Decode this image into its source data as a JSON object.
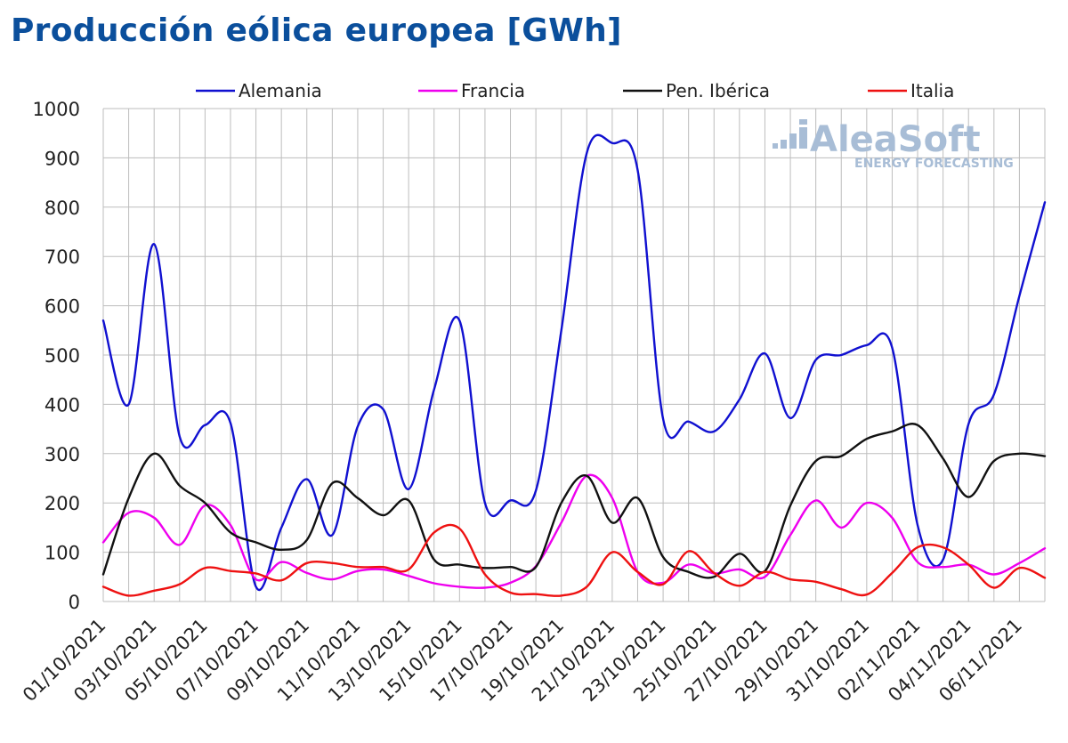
{
  "title": "Producción eólica europea [GWh]",
  "logo": {
    "name": "AleaSoft",
    "tagline": "ENERGY FORECASTING",
    "color": "#a8bdd6"
  },
  "chart_data": {
    "type": "line",
    "title": "Producción eólica europea [GWh]",
    "ylim": [
      0,
      1000
    ],
    "yticks": [
      "0",
      "100",
      "200",
      "300",
      "400",
      "500",
      "600",
      "700",
      "800",
      "900",
      "1000"
    ],
    "grid": true,
    "legend_position": "top",
    "x_tick_labels": [
      "01/10/2021",
      "03/10/2021",
      "05/10/2021",
      "07/10/2021",
      "09/10/2021",
      "11/10/2021",
      "13/10/2021",
      "15/10/2021",
      "17/10/2021",
      "19/10/2021",
      "21/10/2021",
      "23/10/2021",
      "25/10/2021",
      "27/10/2021",
      "29/10/2021",
      "31/10/2021",
      "02/11/2021",
      "04/11/2021",
      "06/11/2021"
    ],
    "x": [
      "01/10/2021",
      "02/10/2021",
      "03/10/2021",
      "04/10/2021",
      "05/10/2021",
      "06/10/2021",
      "07/10/2021",
      "08/10/2021",
      "09/10/2021",
      "10/10/2021",
      "11/10/2021",
      "12/10/2021",
      "13/10/2021",
      "14/10/2021",
      "15/10/2021",
      "16/10/2021",
      "17/10/2021",
      "18/10/2021",
      "19/10/2021",
      "20/10/2021",
      "21/10/2021",
      "22/10/2021",
      "23/10/2021",
      "24/10/2021",
      "25/10/2021",
      "26/10/2021",
      "27/10/2021",
      "28/10/2021",
      "29/10/2021",
      "30/10/2021",
      "31/10/2021",
      "01/11/2021",
      "02/11/2021",
      "03/11/2021",
      "04/11/2021",
      "05/11/2021",
      "06/11/2021",
      "07/11/2021"
    ],
    "series": [
      {
        "name": "Alemania",
        "color": "#1010d0",
        "values": [
          570,
          400,
          725,
          335,
          358,
          362,
          30,
          150,
          248,
          135,
          355,
          390,
          228,
          430,
          570,
          200,
          205,
          225,
          550,
          910,
          930,
          875,
          370,
          365,
          345,
          410,
          503,
          372,
          490,
          500,
          520,
          515,
          155,
          85,
          360,
          420,
          620,
          810
        ]
      },
      {
        "name": "Francia",
        "color": "#ee00ee",
        "values": [
          120,
          180,
          170,
          115,
          195,
          155,
          45,
          80,
          58,
          45,
          62,
          65,
          52,
          37,
          30,
          28,
          38,
          72,
          160,
          255,
          210,
          60,
          38,
          75,
          57,
          65,
          50,
          135,
          205,
          150,
          200,
          170,
          80,
          70,
          75,
          55,
          78,
          108
        ]
      },
      {
        "name": "Pen. Ibérica",
        "color": "#111111",
        "values": [
          55,
          210,
          300,
          235,
          200,
          140,
          120,
          105,
          125,
          240,
          210,
          175,
          205,
          85,
          75,
          68,
          70,
          70,
          200,
          255,
          160,
          210,
          90,
          60,
          50,
          97,
          62,
          195,
          285,
          295,
          330,
          345,
          358,
          290,
          212,
          285,
          300,
          295
        ]
      },
      {
        "name": "Italia",
        "color": "#ee1111",
        "values": [
          30,
          12,
          22,
          35,
          68,
          62,
          57,
          43,
          78,
          78,
          70,
          70,
          65,
          140,
          148,
          55,
          18,
          15,
          12,
          30,
          100,
          60,
          35,
          102,
          58,
          32,
          60,
          45,
          40,
          25,
          14,
          58,
          110,
          110,
          75,
          28,
          68,
          48
        ]
      }
    ]
  }
}
